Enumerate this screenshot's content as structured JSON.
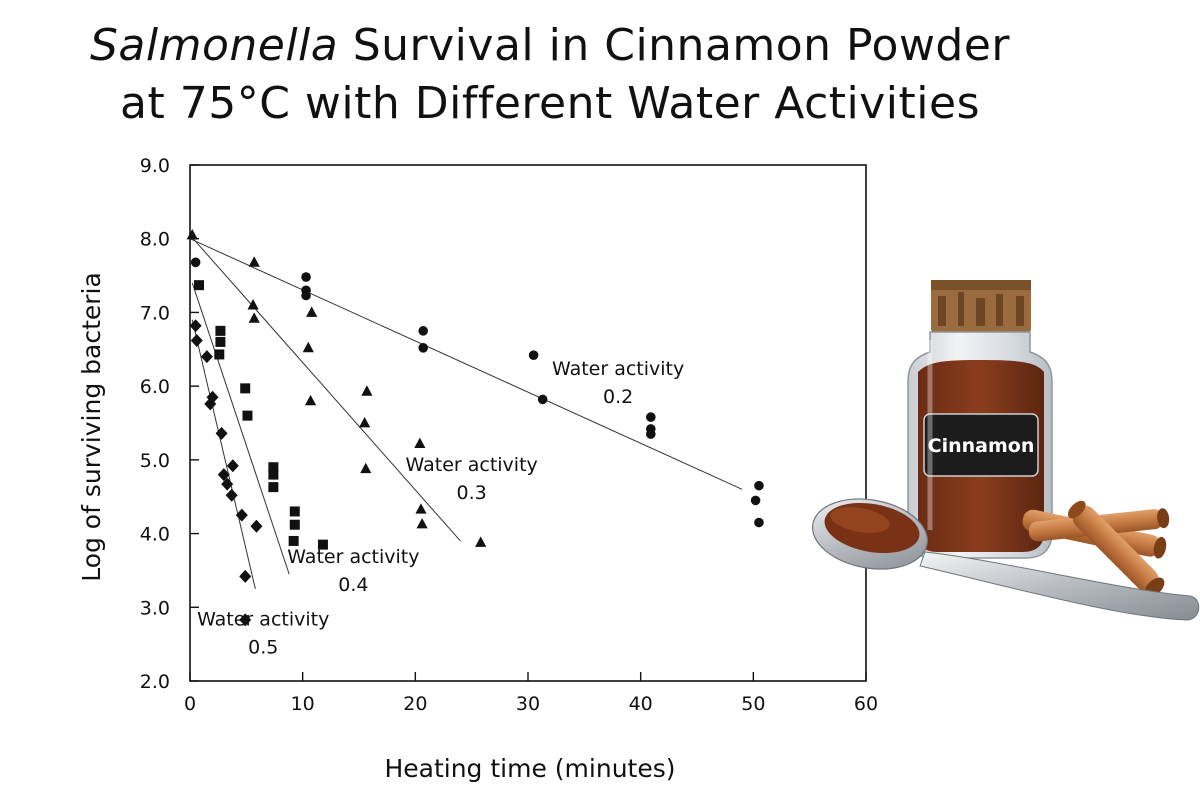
{
  "title": {
    "italic": "Salmonella",
    "line1_rest": " Survival in Cinnamon Powder",
    "line2": "at 75°C with Different Water Activities"
  },
  "illustration": {
    "label": "Cinnamon"
  },
  "chart_data": {
    "type": "scatter",
    "xlabel": "Heating time (minutes)",
    "ylabel": "Log of surviving bacteria",
    "xlim": [
      0,
      60
    ],
    "ylim": [
      2.0,
      9.0
    ],
    "x_ticks": [
      0,
      10,
      20,
      30,
      40,
      50,
      60
    ],
    "x_tick_labels": [
      "0",
      "10",
      "20",
      "30",
      "40",
      "50",
      "60"
    ],
    "y_ticks": [
      2.0,
      3.0,
      4.0,
      5.0,
      6.0,
      7.0,
      8.0,
      9.0
    ],
    "y_tick_labels": [
      "2.0",
      "3.0",
      "4.0",
      "5.0",
      "6.0",
      "7.0",
      "8.0",
      "9.0"
    ],
    "series": [
      {
        "name": "Water activity 0.2",
        "label_line1": "Water activity",
        "label_line2": "0.2",
        "marker": "circle",
        "fit": [
          [
            0,
            8.0
          ],
          [
            49,
            4.6
          ]
        ],
        "points": [
          [
            0.5,
            7.68
          ],
          [
            10.3,
            7.48
          ],
          [
            10.3,
            7.3
          ],
          [
            10.3,
            7.23
          ],
          [
            20.7,
            6.75
          ],
          [
            20.7,
            6.52
          ],
          [
            30.5,
            6.42
          ],
          [
            31.3,
            5.82
          ],
          [
            40.9,
            5.58
          ],
          [
            40.9,
            5.42
          ],
          [
            40.9,
            5.35
          ],
          [
            50.5,
            4.65
          ],
          [
            50.2,
            4.45
          ],
          [
            50.5,
            4.15
          ]
        ]
      },
      {
        "name": "Water activity 0.3",
        "label_line1": "Water activity",
        "label_line2": "0.3",
        "marker": "triangle",
        "fit": [
          [
            0,
            8.05
          ],
          [
            24,
            3.9
          ]
        ],
        "points": [
          [
            0.2,
            8.05
          ],
          [
            5.7,
            7.68
          ],
          [
            5.6,
            7.1
          ],
          [
            5.7,
            6.92
          ],
          [
            10.8,
            7.0
          ],
          [
            10.5,
            6.52
          ],
          [
            10.7,
            5.8
          ],
          [
            15.7,
            5.93
          ],
          [
            15.5,
            5.5
          ],
          [
            15.6,
            4.88
          ],
          [
            20.4,
            5.22
          ],
          [
            20.5,
            4.33
          ],
          [
            20.6,
            4.13
          ],
          [
            25.8,
            3.88
          ]
        ]
      },
      {
        "name": "Water activity 0.4",
        "label_line1": "Water activity",
        "label_line2": "0.4",
        "marker": "square",
        "fit": [
          [
            0.2,
            7.4
          ],
          [
            8.8,
            3.45
          ]
        ],
        "points": [
          [
            0.8,
            7.37
          ],
          [
            2.7,
            6.75
          ],
          [
            2.7,
            6.6
          ],
          [
            2.6,
            6.43
          ],
          [
            4.9,
            5.97
          ],
          [
            5.1,
            5.6
          ],
          [
            7.4,
            4.9
          ],
          [
            7.4,
            4.8
          ],
          [
            7.4,
            4.63
          ],
          [
            9.3,
            4.3
          ],
          [
            9.3,
            4.12
          ],
          [
            9.2,
            3.9
          ],
          [
            11.8,
            3.85
          ]
        ]
      },
      {
        "name": "Water activity 0.5",
        "label_line1": "Water activity",
        "label_line2": "0.5",
        "marker": "diamond",
        "fit": [
          [
            0.2,
            6.9
          ],
          [
            5.8,
            3.25
          ]
        ],
        "points": [
          [
            0.5,
            6.82
          ],
          [
            0.6,
            6.62
          ],
          [
            1.5,
            6.4
          ],
          [
            2.0,
            5.85
          ],
          [
            1.8,
            5.76
          ],
          [
            2.8,
            5.36
          ],
          [
            3.0,
            4.8
          ],
          [
            3.3,
            4.67
          ],
          [
            3.8,
            4.92
          ],
          [
            3.7,
            4.52
          ],
          [
            4.6,
            4.25
          ],
          [
            5.9,
            4.1
          ],
          [
            4.9,
            3.42
          ],
          [
            4.9,
            2.83
          ]
        ]
      }
    ]
  }
}
